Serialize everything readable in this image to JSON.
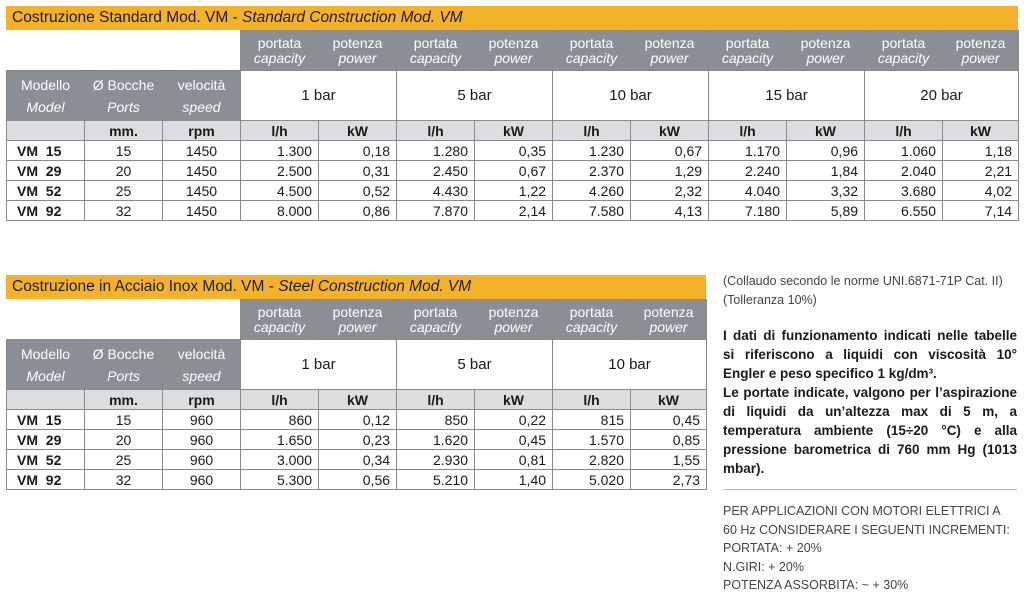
{
  "table1": {
    "title_main": "Costruzione Standard Mod. VM - ",
    "title_italic": "Standard Construction Mod. VM",
    "hdr": {
      "portata": "portata",
      "capacity": "capacity",
      "potenza": "potenza",
      "power": "power",
      "modello": "Modello",
      "model": "Model",
      "bocche": "Ø Bocche",
      "ports": "Ports",
      "velocita": "velocità",
      "speed": "speed",
      "mm": "mm.",
      "rpm": "rpm",
      "lh": "l/h",
      "kw": "kW"
    },
    "pressures": [
      "1 bar",
      "5 bar",
      "10 bar",
      "15 bar",
      "20 bar"
    ],
    "rows": [
      [
        "VM  15",
        "15",
        "1450",
        "1.300",
        "0,18",
        "1.280",
        "0,35",
        "1.230",
        "0,67",
        "1.170",
        "0,96",
        "1.060",
        "1,18"
      ],
      [
        "VM  29",
        "20",
        "1450",
        "2.500",
        "0,31",
        "2.450",
        "0,67",
        "2.370",
        "1,29",
        "2.240",
        "1,84",
        "2.040",
        "2,21"
      ],
      [
        "VM  52",
        "25",
        "1450",
        "4.500",
        "0,52",
        "4.430",
        "1,22",
        "4.260",
        "2,32",
        "4.040",
        "3,32",
        "3.680",
        "4,02"
      ],
      [
        "VM  92",
        "32",
        "1450",
        "8.000",
        "0,86",
        "7.870",
        "2,14",
        "7.580",
        "4,13",
        "7.180",
        "5,89",
        "6.550",
        "7,14"
      ]
    ]
  },
  "table2": {
    "title_main": "Costruzione in Acciaio Inox Mod. VM - ",
    "title_italic": "Steel Construction Mod. VM",
    "hdr": {
      "portata": "portata",
      "capacity": "capacity",
      "potenza": "potenza",
      "power": "power",
      "modello": "Modello",
      "model": "Model",
      "bocche": "Ø Bocche",
      "ports": "Ports",
      "velocita": "velocità",
      "speed": "speed",
      "mm": "mm.",
      "rpm": "rpm",
      "lh": "l/h",
      "kw": "kW"
    },
    "pressures": [
      "1 bar",
      "5 bar",
      "10 bar"
    ],
    "rows": [
      [
        "VM  15",
        "15",
        "960",
        "860",
        "0,12",
        "850",
        "0,22",
        "815",
        "0,45"
      ],
      [
        "VM  29",
        "20",
        "960",
        "1.650",
        "0,23",
        "1.620",
        "0,45",
        "1.570",
        "0,85"
      ],
      [
        "VM  52",
        "25",
        "960",
        "3.000",
        "0,34",
        "2.930",
        "0,81",
        "2.820",
        "1,55"
      ],
      [
        "VM  92",
        "32",
        "960",
        "5.300",
        "0,56",
        "5.210",
        "1,40",
        "5.020",
        "2,73"
      ]
    ]
  },
  "notes": {
    "test_line": "(Collaudo secondo le norme UNI.6871-71P Cat. II)",
    "tolerance_line": "(Tolleranza 10%)",
    "paragraph_1": "I dati di funzionamento indicati nelle tabelle si riferiscono a liquidi con viscosità 10° Engler e peso specifico 1 kg/dm³.",
    "paragraph_2": "Le portate indicate, valgono per l’aspirazione di liquidi da un’altezza max di 5 m, a temperatura ambiente (15÷20 °C) e alla pressione barometrica di 760 mm Hg (1013 mbar).",
    "caps_1": "PER APPLICAZIONI CON MOTORI ELETTRICI A",
    "caps_2": "60 Hz CONSIDERARE I SEGUENTI INCREMENTI:",
    "caps_3": "PORTATA: + 20%",
    "caps_4": "N.GIRI: + 20%",
    "caps_5": "POTENZA ASSORBITA: ~ + 30%"
  },
  "colors": {
    "accent": "#f3b22a",
    "header_gray": "#8a8f96",
    "subheader_gray": "#dcdde0"
  }
}
